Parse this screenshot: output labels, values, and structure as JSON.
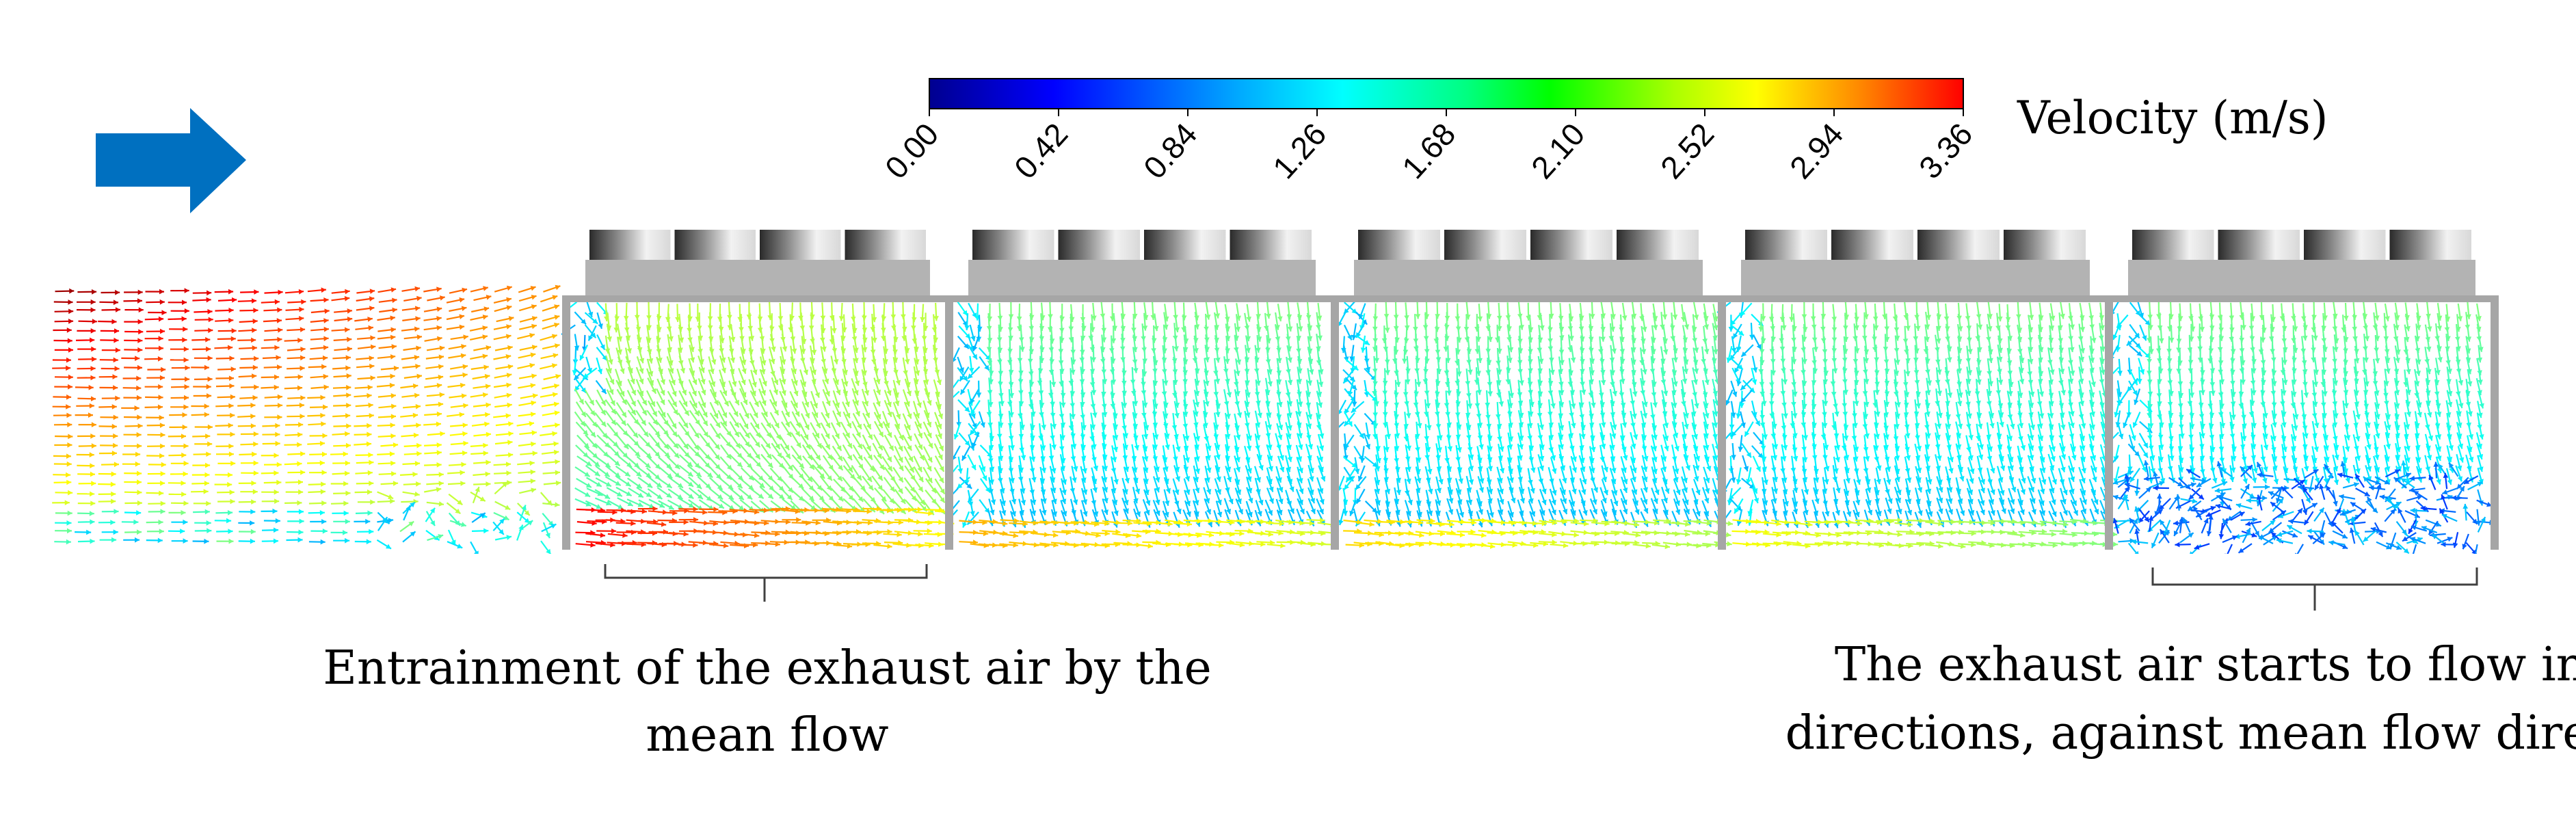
{
  "colorbar": {
    "title": "Velocity (m/s)",
    "ticks": [
      "0.00",
      "0.42",
      "0.84",
      "1.26",
      "1.68",
      "2.10",
      "2.52",
      "2.94",
      "3.36"
    ],
    "colors": [
      "#0000ff",
      "#0096ff",
      "#00ffff",
      "#00ff96",
      "#00ff00",
      "#96ff00",
      "#ffff00",
      "#ff9600",
      "#ff0000"
    ]
  },
  "annotations": {
    "left_line1": "Entrainment of the exhaust air by the",
    "left_line2": "mean flow",
    "right_line1": "The exhaust air starts to flow in all",
    "right_line2": "directions, against mean flow direction"
  },
  "colors": {
    "arrow": "#0070c0",
    "wall": "#a6a6a6",
    "fan_housing": "#b3b3b3"
  },
  "icons": [
    "flow-direction-arrow-icon",
    "fan-unit-icon"
  ],
  "sections": 5
}
